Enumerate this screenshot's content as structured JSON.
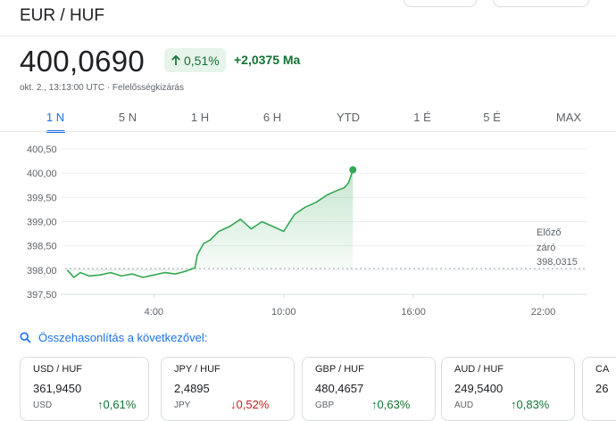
{
  "header": {
    "pair": "EUR / HUF"
  },
  "quote": {
    "price": "400,0690",
    "change_pct": "0,51%",
    "change_abs": "+2,0375 Ma",
    "timestamp": "okt. 2., 13:13:00 UTC · Felelősségkizárás",
    "change_direction": "up",
    "color_up": "#137333",
    "color_down": "#c5221f"
  },
  "tabs": [
    {
      "label": "1 N",
      "active": true
    },
    {
      "label": "5 N",
      "active": false
    },
    {
      "label": "1 H",
      "active": false
    },
    {
      "label": "6 H",
      "active": false
    },
    {
      "label": "YTD",
      "active": false
    },
    {
      "label": "1 É",
      "active": false
    },
    {
      "label": "5 É",
      "active": false
    },
    {
      "label": "MAX",
      "active": false
    }
  ],
  "chart_data": {
    "type": "area",
    "y_ticks": [
      "400,50",
      "400,00",
      "399,50",
      "399,00",
      "398,50",
      "398,00",
      "397,50"
    ],
    "ylim": [
      397.5,
      400.5
    ],
    "x_ticks": [
      "4:00",
      "10:00",
      "16:00",
      "22:00"
    ],
    "x_tick_hours": [
      4,
      10,
      16,
      22
    ],
    "xlim": [
      -0.1,
      24.0
    ],
    "previous_close": {
      "label_line1": "Előző",
      "label_line2": "záró",
      "value": "398,0315",
      "y": 398.0315
    },
    "series": [
      {
        "color": "#34a853",
        "x": [
          0.0,
          0.3,
          0.6,
          1.0,
          1.5,
          2.0,
          2.5,
          3.0,
          3.5,
          4.0,
          4.5,
          5.0,
          5.5,
          5.9,
          6.0,
          6.05,
          6.3,
          6.6,
          7.0,
          7.5,
          8.0,
          8.5,
          9.0,
          9.5,
          10.0,
          10.5,
          11.0,
          11.5,
          12.0,
          12.5,
          12.8,
          13.0,
          13.2
        ],
        "values": [
          398.0,
          397.85,
          397.95,
          397.88,
          397.9,
          397.95,
          397.88,
          397.92,
          397.85,
          397.9,
          397.95,
          397.92,
          397.98,
          398.05,
          398.3,
          398.35,
          398.55,
          398.62,
          398.8,
          398.9,
          399.05,
          398.85,
          399.0,
          398.9,
          398.8,
          399.15,
          399.3,
          399.4,
          399.55,
          399.65,
          399.7,
          399.8,
          400.07
        ]
      }
    ]
  },
  "compare": {
    "label": "Összehasonlítás a következővel:"
  },
  "cards": [
    {
      "name": "USD / HUF",
      "value": "361,9450",
      "code": "USD",
      "change": "0,61%",
      "direction": "up"
    },
    {
      "name": "JPY / HUF",
      "value": "2,4895",
      "code": "JPY",
      "change": "0,52%",
      "direction": "down"
    },
    {
      "name": "GBP / HUF",
      "value": "480,4657",
      "code": "GBP",
      "change": "0,63%",
      "direction": "up"
    },
    {
      "name": "AUD / HUF",
      "value": "249,5400",
      "code": "AUD",
      "change": "0,83%",
      "direction": "up"
    },
    {
      "name": "CA",
      "value": "26",
      "code": "",
      "change": "",
      "direction": "up"
    }
  ]
}
